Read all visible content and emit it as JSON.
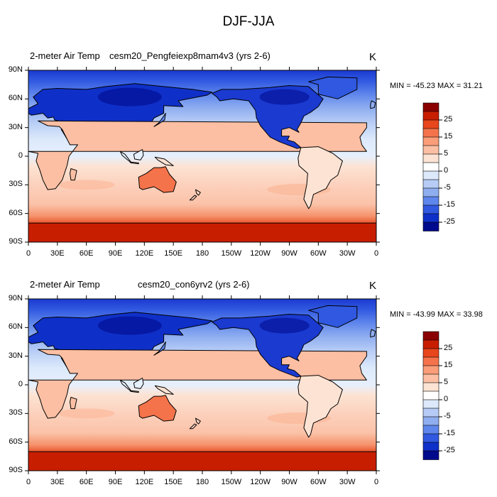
{
  "figure_title": "DJF-JJA",
  "panels": [
    {
      "variable": "2-meter Air Temp",
      "case": "cesm20_Pengfeiexp8mam4v3 (yrs 2-6)",
      "units": "K",
      "stats": "MIN = -45.23 MAX =  31.21"
    },
    {
      "variable": "2-meter Air Temp",
      "case": "cesm20_con6yrv2 (yrs 2-6)",
      "units": "K",
      "stats": "MIN = -43.99 MAX =  33.98"
    }
  ],
  "lat_ticks": [
    "90N",
    "60N",
    "30N",
    "0",
    "30S",
    "60S",
    "90S"
  ],
  "lon_ticks": [
    "0",
    "30E",
    "60E",
    "90E",
    "120E",
    "150E",
    "180",
    "150W",
    "120W",
    "90W",
    "60W",
    "30W",
    "0"
  ],
  "colorbar": {
    "labels": [
      "25",
      "15",
      "5",
      "0",
      "-5",
      "-15",
      "-25"
    ],
    "colors": [
      "#8a0000",
      "#c81e00",
      "#e8461c",
      "#f5734b",
      "#fa9d78",
      "#fcbfa3",
      "#fde3d3",
      "#ffffff",
      "#dce9fb",
      "#b6ccf6",
      "#8faef0",
      "#5f86ec",
      "#3058e0",
      "#0f30c8",
      "#000a8c"
    ]
  },
  "chart_data": {
    "type": "map",
    "title": "DJF-JJA",
    "units": "K",
    "projection": "cylindrical equidistant, centered on 180",
    "levels": [
      -30,
      -25,
      -20,
      -15,
      -10,
      -5,
      -2.5,
      0,
      2.5,
      5,
      10,
      15,
      20,
      25,
      30
    ],
    "panels": [
      {
        "case": "cesm20_Pengfeiexp8mam4v3 (yrs 2-6)",
        "min": -45.23,
        "max": 31.21
      },
      {
        "case": "cesm20_con6yrv2 (yrs 2-6)",
        "min": -43.99,
        "max": 33.98
      }
    ]
  }
}
